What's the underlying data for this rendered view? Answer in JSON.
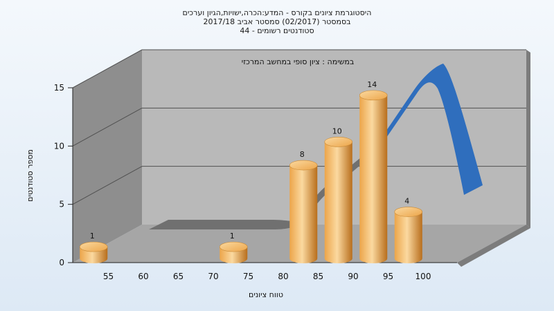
{
  "chart_data": {
    "type": "bar",
    "title_lines": [
      "היסטוגרמת ציונים בקורס - המדע:הכרה,ישויות,הגיון וערכים",
      "בסמסטר  (02/2017)  סמסטר אביב 2017/18",
      "סטודנטים רשומים - 44"
    ],
    "annotation": "במשימה : ציון סופי במחשב המרכזי",
    "xlabel": "טווח ציונים",
    "ylabel": "מספר סטודנטים",
    "categories": [
      "55",
      "60",
      "65",
      "70",
      "75",
      "80",
      "85",
      "90",
      "95",
      "100"
    ],
    "values": [
      1,
      0,
      0,
      0,
      1,
      0,
      8,
      10,
      14,
      4
    ],
    "data_labels": [
      "1",
      "",
      "",
      "",
      "1",
      "",
      "8",
      "10",
      "14",
      "4"
    ],
    "yticks": [
      "0",
      "5",
      "10",
      "15"
    ],
    "ylim": [
      0,
      15
    ],
    "grid": true,
    "legend": "none",
    "colors": {
      "bar_light": "#fbd9a0",
      "bar_mid": "#eca54a",
      "bar_dark": "#b86e1c",
      "curve_blue": "#2f6ebd",
      "curve_gray": "#707070",
      "wall_back": "#b9b9b9",
      "wall_left": "#8e8e8e",
      "floor": "#a6a6a6"
    }
  }
}
